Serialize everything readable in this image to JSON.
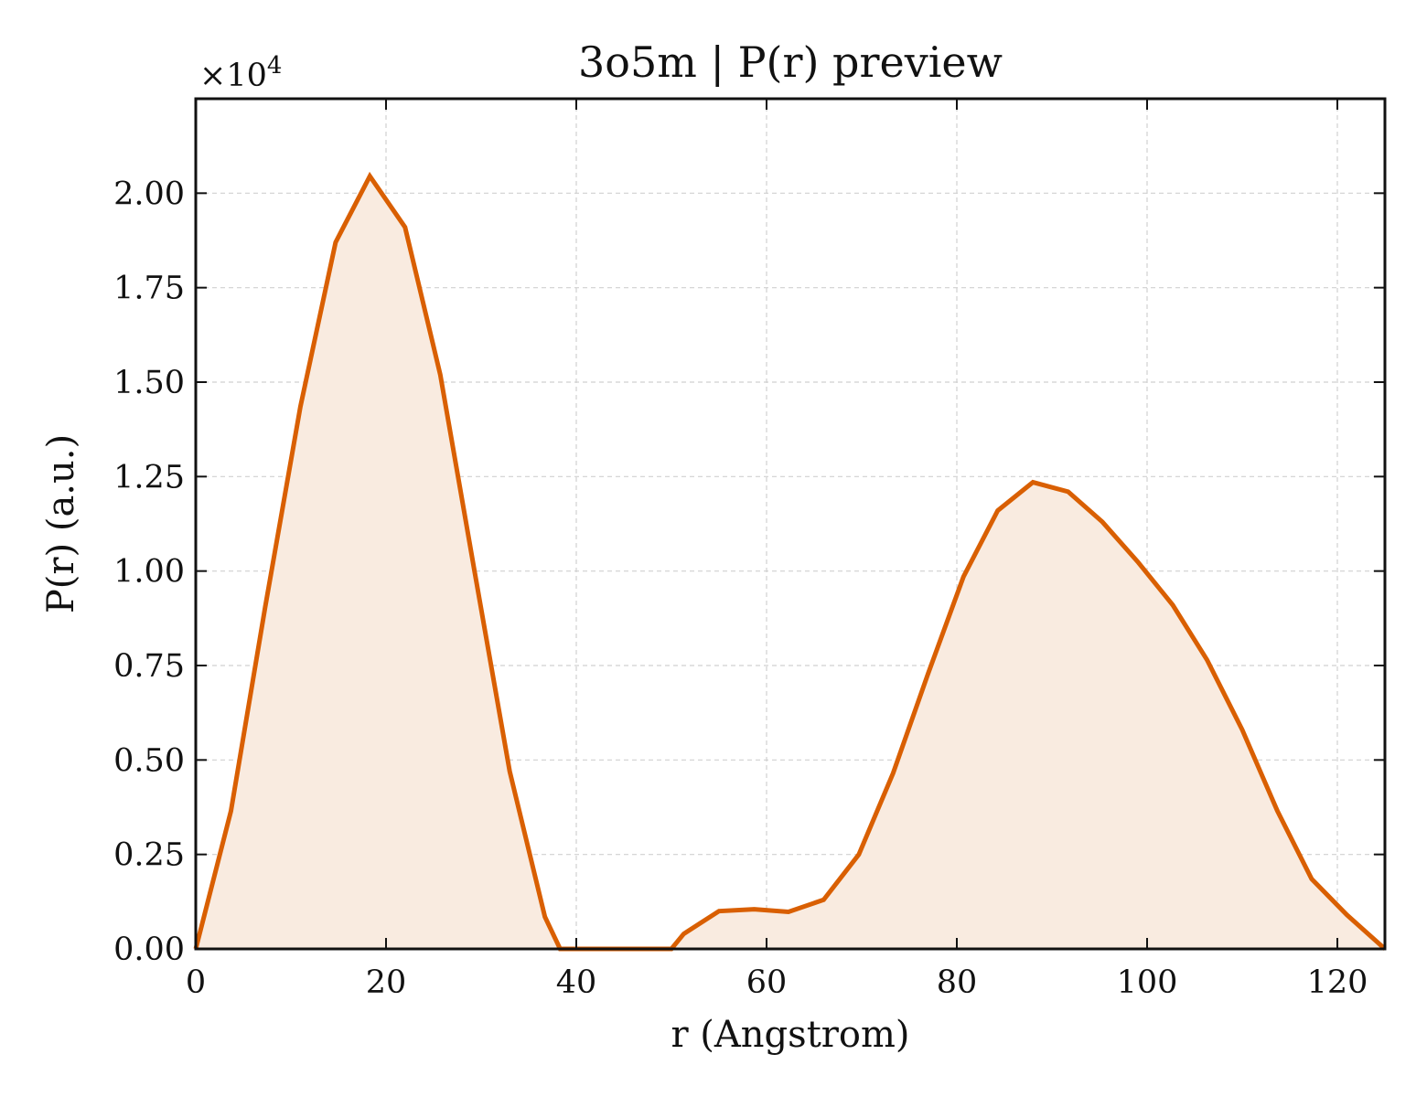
{
  "chart_data": {
    "type": "area",
    "title": "3o5m | P(r) preview",
    "xlabel": "r (Angstrom)",
    "ylabel": "P(r) (a.u.)",
    "y_multiplier_label": "×10",
    "y_multiplier_exponent": "4",
    "xlim": [
      0,
      125
    ],
    "ylim": [
      0,
      2.25
    ],
    "xticks": [
      0,
      20,
      40,
      60,
      80,
      100,
      120
    ],
    "xtick_labels": [
      "0",
      "20",
      "40",
      "60",
      "80",
      "100",
      "120"
    ],
    "yticks": [
      0,
      0.25,
      0.5,
      0.75,
      1.0,
      1.25,
      1.5,
      1.75,
      2.0
    ],
    "ytick_labels": [
      "0.00",
      "0.25",
      "0.50",
      "0.75",
      "1.00",
      "1.25",
      "1.50",
      "1.75",
      "2.00"
    ],
    "grid": true,
    "line_color": "#d95f02",
    "fill_color": "#f9ebe0",
    "series": [
      {
        "x": [
          0,
          3.7,
          7.3,
          11.0,
          14.7,
          18.3,
          22.0,
          25.7,
          29.3,
          33.0,
          36.7,
          38.3,
          50.0,
          51.3,
          55.0,
          58.7,
          62.3,
          66.0,
          69.7,
          73.3,
          77.0,
          80.7,
          84.3,
          88.0,
          91.7,
          95.3,
          99.0,
          102.7,
          106.3,
          110.0,
          113.7,
          117.3,
          121.0,
          125.0
        ],
        "y": [
          0.0,
          0.365,
          0.905,
          1.435,
          1.87,
          2.045,
          1.91,
          1.52,
          1.0,
          0.47,
          0.085,
          0.0,
          0.0,
          0.04,
          0.1,
          0.105,
          0.098,
          0.13,
          0.25,
          0.465,
          0.73,
          0.985,
          1.16,
          1.235,
          1.21,
          1.13,
          1.025,
          0.91,
          0.765,
          0.58,
          0.365,
          0.185,
          0.09,
          0.0
        ]
      }
    ]
  }
}
